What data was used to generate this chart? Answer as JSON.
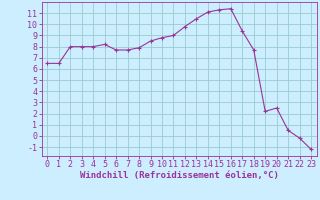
{
  "x": [
    0,
    1,
    2,
    3,
    4,
    5,
    6,
    7,
    8,
    9,
    10,
    11,
    12,
    13,
    14,
    15,
    16,
    17,
    18,
    19,
    20,
    21,
    22,
    23
  ],
  "y": [
    6.5,
    6.5,
    8.0,
    8.0,
    8.0,
    8.2,
    7.7,
    7.7,
    7.9,
    8.5,
    8.8,
    9.0,
    9.8,
    10.5,
    11.1,
    11.3,
    11.4,
    9.4,
    7.7,
    2.2,
    2.5,
    0.5,
    -0.2,
    -1.2
  ],
  "line_color": "#993399",
  "marker": "+",
  "marker_size": 3,
  "bg_color": "#cceeff",
  "grid_color": "#99cccc",
  "xlabel": "Windchill (Refroidissement éolien,°C)",
  "xlim": [
    -0.5,
    23.5
  ],
  "ylim": [
    -1.8,
    12.0
  ],
  "yticks": [
    -1,
    0,
    1,
    2,
    3,
    4,
    5,
    6,
    7,
    8,
    9,
    10,
    11
  ],
  "xticks": [
    0,
    1,
    2,
    3,
    4,
    5,
    6,
    7,
    8,
    9,
    10,
    11,
    12,
    13,
    14,
    15,
    16,
    17,
    18,
    19,
    20,
    21,
    22,
    23
  ],
  "tick_color": "#993399",
  "axis_color": "#993399",
  "label_fontsize": 6.5,
  "tick_fontsize": 6.0,
  "linewidth": 0.8,
  "markeredgewidth": 0.8
}
